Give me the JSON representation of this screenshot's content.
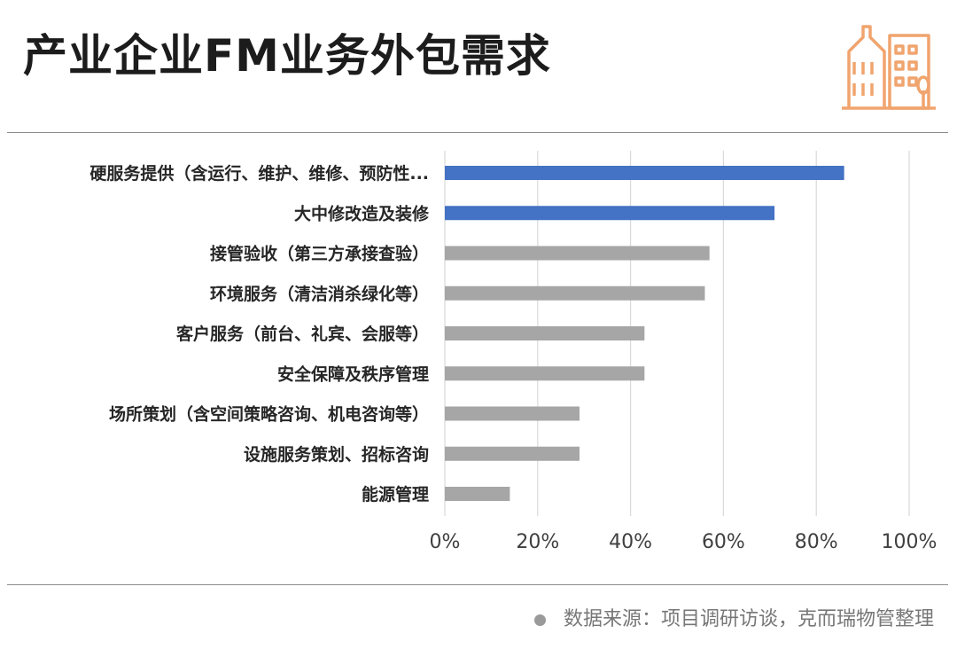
{
  "header": {
    "title": "产业企业FM业务外包需求",
    "logo_icon": "buildings-icon",
    "logo_color": "#f0a46e"
  },
  "footer": {
    "source": "数据来源：项目调研访谈，克而瑞物管整理"
  },
  "colors": {
    "highlight_bar": "#4472c4",
    "normal_bar": "#a6a6a6",
    "grid": "#d9d9d9",
    "label_text": "#262626",
    "tick_text": "#404040"
  },
  "chart_data": {
    "type": "bar",
    "orientation": "horizontal",
    "categories": [
      "硬服务提供（含运行、维护、维修、预防性...",
      "大中修改造及装修",
      "接管验收（第三方承接查验）",
      "环境服务（清洁消杀绿化等）",
      "客户服务（前台、礼宾、会服等）",
      "安全保障及秩序管理",
      "场所策划（含空间策略咨询、机电咨询等）",
      "设施服务策划、招标咨询",
      "能源管理"
    ],
    "values": [
      86,
      71,
      57,
      56,
      43,
      43,
      29,
      29,
      14
    ],
    "highlighted": [
      true,
      true,
      false,
      false,
      false,
      false,
      false,
      false,
      false
    ],
    "xlim": [
      0,
      100
    ],
    "xticks": [
      "0%",
      "20%",
      "40%",
      "60%",
      "80%",
      "100%"
    ],
    "xtick_values": [
      0,
      20,
      40,
      60,
      80,
      100
    ],
    "grid": "vertical",
    "title": "",
    "xlabel": "",
    "ylabel": ""
  }
}
